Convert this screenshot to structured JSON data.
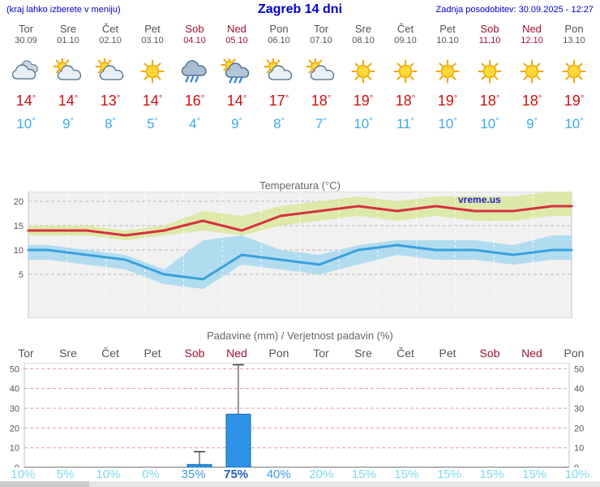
{
  "header": {
    "left_note": "(kraj lahko izberete v meniju)",
    "title": "Zagreb 14 dni",
    "updated": "Zadnja posodobitev: 30.09.2025 - 12:27"
  },
  "units": {
    "degree": "°"
  },
  "days": [
    {
      "name": "Tor",
      "date": "30.09",
      "weekend": false,
      "icon": "cloudy",
      "tmax": "14",
      "tmin": "10"
    },
    {
      "name": "Sre",
      "date": "01.10",
      "weekend": false,
      "icon": "partly-cloudy",
      "tmax": "14",
      "tmin": "9"
    },
    {
      "name": "Čet",
      "date": "02.10",
      "weekend": false,
      "icon": "partly-cloudy",
      "tmax": "13",
      "tmin": "8"
    },
    {
      "name": "Pet",
      "date": "03.10",
      "weekend": false,
      "icon": "sunny",
      "tmax": "14",
      "tmin": "5"
    },
    {
      "name": "Sob",
      "date": "04.10",
      "weekend": true,
      "icon": "rain",
      "tmax": "16",
      "tmin": "4"
    },
    {
      "name": "Ned",
      "date": "05.10",
      "weekend": true,
      "icon": "sun-rain",
      "tmax": "14",
      "tmin": "9"
    },
    {
      "name": "Pon",
      "date": "06.10",
      "weekend": false,
      "icon": "partly-cloudy",
      "tmax": "17",
      "tmin": "8"
    },
    {
      "name": "Tor",
      "date": "07.10",
      "weekend": false,
      "icon": "partly-cloudy",
      "tmax": "18",
      "tmin": "7"
    },
    {
      "name": "Sre",
      "date": "08.10",
      "weekend": false,
      "icon": "sunny",
      "tmax": "19",
      "tmin": "10"
    },
    {
      "name": "Čet",
      "date": "09.10",
      "weekend": false,
      "icon": "sunny",
      "tmax": "18",
      "tmin": "11"
    },
    {
      "name": "Pet",
      "date": "10.10",
      "weekend": false,
      "icon": "sunny",
      "tmax": "19",
      "tmin": "10"
    },
    {
      "name": "Sob",
      "date": "11.10",
      "weekend": true,
      "icon": "sunny",
      "tmax": "18",
      "tmin": "10"
    },
    {
      "name": "Ned",
      "date": "12.10",
      "weekend": true,
      "icon": "sunny",
      "tmax": "18",
      "tmin": "9"
    },
    {
      "name": "Pon",
      "date": "13.10",
      "weekend": false,
      "icon": "sunny",
      "tmax": "19",
      "tmin": "10"
    }
  ],
  "chart_data": [
    {
      "type": "line",
      "title": "Temperatura (°C)",
      "watermark": "vreme.us",
      "x_labels": [
        "Tor 30.09",
        "Sre 01.10",
        "Čet 02.10",
        "Pet 03.10",
        "Sob 04.10",
        "Ned 05.10",
        "Pon 06.10",
        "Tor 07.10",
        "Sre 08.10",
        "Čet 09.10",
        "Pet 10.10",
        "Sob 11.10",
        "Ned 12.10",
        "Pon 13.10"
      ],
      "ylim": [
        -4,
        22
      ],
      "yticks": [
        5,
        10,
        15,
        20
      ],
      "grid": true,
      "series": [
        {
          "name": "tmax",
          "color": "#d63040",
          "values": [
            14,
            14,
            13,
            14,
            16,
            14,
            17,
            18,
            19,
            18,
            19,
            18,
            18,
            19
          ]
        },
        {
          "name": "tmin",
          "color": "#3aa0dc",
          "values": [
            10,
            9,
            8,
            5,
            4,
            9,
            8,
            7,
            10,
            11,
            10,
            10,
            9,
            10
          ]
        }
      ],
      "bands": [
        {
          "name": "tmax-range",
          "color": "#d9e89b",
          "upper": [
            15,
            15,
            14,
            15,
            18,
            17,
            19,
            20,
            21,
            20,
            21,
            21,
            21,
            22
          ],
          "lower": [
            13,
            13,
            12,
            13,
            14,
            13,
            15,
            16,
            17,
            16,
            17,
            16,
            16,
            17
          ]
        },
        {
          "name": "tmin-range",
          "color": "#a6d8f0",
          "upper": [
            11,
            10,
            9,
            6,
            12,
            13,
            10,
            9,
            11,
            12,
            12,
            12,
            11,
            13
          ],
          "lower": [
            8,
            7,
            6,
            3,
            2,
            7,
            6,
            5,
            7,
            9,
            8,
            8,
            7,
            8
          ]
        }
      ]
    },
    {
      "type": "bar",
      "title": "Padavine (mm) / Verjetnost padavin (%)",
      "categories": [
        "Tor",
        "Sre",
        "Čet",
        "Pet",
        "Sob",
        "Ned",
        "Pon",
        "Tor",
        "Sre",
        "Čet",
        "Pet",
        "Sob",
        "Ned",
        "Pon"
      ],
      "weekend": [
        false,
        false,
        false,
        false,
        true,
        true,
        false,
        false,
        false,
        false,
        false,
        true,
        true,
        false
      ],
      "values": [
        0,
        0,
        0,
        0,
        1.5,
        27,
        0,
        0,
        0,
        0,
        0,
        0,
        0,
        0
      ],
      "whisker_max": [
        0,
        0,
        0,
        0,
        8,
        52,
        0,
        0,
        0,
        0,
        0,
        0,
        0,
        0
      ],
      "probabilities": [
        "10%",
        "5%",
        "10%",
        "0%",
        "35%",
        "75%",
        "40%",
        "20%",
        "15%",
        "15%",
        "15%",
        "15%",
        "15%",
        "10%"
      ],
      "prob_levels": [
        "low",
        "low",
        "low",
        "low",
        "mid",
        "high",
        "mid",
        "low",
        "low",
        "low",
        "low",
        "low",
        "low",
        "low"
      ],
      "ylim": [
        0,
        53
      ],
      "yticks": [
        0,
        10,
        20,
        30,
        40,
        50
      ],
      "bar_color": "#2e93e8"
    }
  ]
}
